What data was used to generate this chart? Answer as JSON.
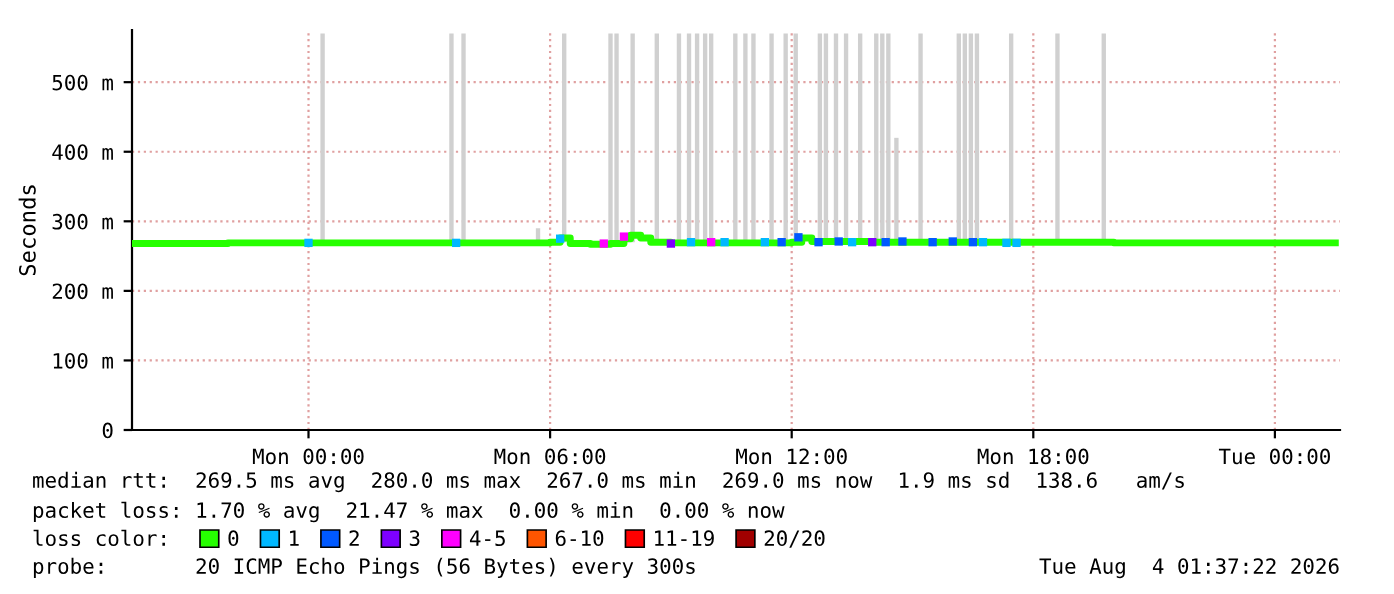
{
  "chart_data": {
    "type": "line",
    "ylabel": "Seconds",
    "legend_title": "loss color:",
    "xlim": [
      "2026-08-02T19:37",
      "2026-08-04T01:37"
    ],
    "xticks": [
      {
        "value": "2026-08-03T00:00",
        "label": "Mon 00:00"
      },
      {
        "value": "2026-08-03T06:00",
        "label": "Mon 06:00"
      },
      {
        "value": "2026-08-03T12:00",
        "label": "Mon 12:00"
      },
      {
        "value": "2026-08-03T18:00",
        "label": "Mon 18:00"
      },
      {
        "value": "2026-08-04T00:00",
        "label": "Tue 00:00"
      }
    ],
    "ylim": [
      0,
      575
    ],
    "yticks": [
      0,
      {
        "value": 100,
        "label": "100 m"
      },
      {
        "value": 200,
        "label": "200 m"
      },
      {
        "value": 300,
        "label": "300 m"
      },
      {
        "value": 400,
        "label": "400 m"
      },
      {
        "value": 500,
        "label": "500 m"
      }
    ],
    "grid": true,
    "legend": "bottom",
    "series": [
      {
        "type": "bar",
        "color": "#d0d0d0",
        "x": [
          "2026-08-03T00:21",
          "2026-08-03T03:33",
          "2026-08-03T03:51",
          "2026-08-03T05:42",
          "2026-08-03T06:21",
          "2026-08-03T07:30",
          "2026-08-03T07:39",
          "2026-08-03T08:03",
          "2026-08-03T08:39",
          "2026-08-03T09:12",
          "2026-08-03T09:27",
          "2026-08-03T09:39",
          "2026-08-03T09:51",
          "2026-08-03T10:00",
          "2026-08-03T10:36",
          "2026-08-03T10:51",
          "2026-08-03T11:03",
          "2026-08-03T11:30",
          "2026-08-03T11:51",
          "2026-08-03T12:06",
          "2026-08-03T12:42",
          "2026-08-03T12:51",
          "2026-08-03T13:06",
          "2026-08-03T13:21",
          "2026-08-03T13:42",
          "2026-08-03T14:06",
          "2026-08-03T14:15",
          "2026-08-03T14:24",
          "2026-08-03T14:36",
          "2026-08-03T15:12",
          "2026-08-03T16:09",
          "2026-08-03T16:18",
          "2026-08-03T16:27",
          "2026-08-03T16:36",
          "2026-08-03T17:27",
          "2026-08-03T18:36",
          "2026-08-03T19:45"
        ],
        "base": [
          270,
          270,
          270,
          270,
          270,
          270,
          270,
          270,
          270,
          270,
          270,
          270,
          270,
          270,
          270,
          270,
          270,
          270,
          270,
          270,
          270,
          270,
          270,
          270,
          270,
          270,
          270,
          270,
          270,
          270,
          270,
          270,
          270,
          270,
          270,
          270,
          270
        ],
        "values": [
          300,
          300,
          300,
          20,
          300,
          300,
          300,
          300,
          300,
          300,
          300,
          300,
          300,
          300,
          300,
          300,
          300,
          300,
          300,
          300,
          300,
          300,
          300,
          300,
          300,
          300,
          300,
          300,
          150,
          300,
          300,
          300,
          300,
          300,
          300,
          300,
          300
        ]
      },
      {
        "name": "0",
        "color": "#26ff00",
        "x": [
          "2026-08-02T19:37",
          "2026-08-02T22:00",
          "2026-08-03T00:00",
          "2026-08-03T03:00",
          "2026-08-03T05:30",
          "2026-08-03T06:00",
          "2026-08-03T06:15",
          "2026-08-03T06:30",
          "2026-08-03T07:00",
          "2026-08-03T07:30",
          "2026-08-03T07:50",
          "2026-08-03T08:00",
          "2026-08-03T08:15",
          "2026-08-03T08:30",
          "2026-08-03T09:00",
          "2026-08-03T12:00",
          "2026-08-03T12:15",
          "2026-08-03T12:30",
          "2026-08-03T14:00",
          "2026-08-03T18:00",
          "2026-08-03T20:00",
          "2026-08-04T01:30"
        ],
        "values": [
          268,
          269,
          269,
          269,
          269,
          270,
          276,
          268,
          267,
          268,
          275,
          280,
          276,
          270,
          269,
          270,
          276,
          271,
          270,
          270,
          269,
          269
        ]
      },
      {
        "name": "1",
        "type": "scatter",
        "color": "#00b8ff",
        "x": [
          "2026-08-03T00:00",
          "2026-08-03T03:40",
          "2026-08-03T06:15",
          "2026-08-03T09:30",
          "2026-08-03T10:20",
          "2026-08-03T11:20",
          "2026-08-03T13:30",
          "2026-08-03T16:45",
          "2026-08-03T17:20",
          "2026-08-03T17:35"
        ],
        "values": [
          269,
          269,
          275,
          270,
          270,
          270,
          270,
          270,
          269,
          269
        ]
      },
      {
        "name": "2",
        "type": "scatter",
        "color": "#0059ff",
        "x": [
          "2026-08-03T11:45",
          "2026-08-03T12:10",
          "2026-08-03T12:40",
          "2026-08-03T13:10",
          "2026-08-03T14:20",
          "2026-08-03T14:45",
          "2026-08-03T15:30",
          "2026-08-03T16:00",
          "2026-08-03T16:30"
        ],
        "values": [
          270,
          277,
          270,
          271,
          270,
          271,
          270,
          271,
          270
        ]
      },
      {
        "name": "3",
        "type": "scatter",
        "color": "#7e00ff",
        "x": [
          "2026-08-03T09:00",
          "2026-08-03T14:00"
        ],
        "values": [
          268,
          270
        ]
      },
      {
        "name": "4-5",
        "type": "scatter",
        "color": "#ff00ff",
        "x": [
          "2026-08-03T07:20",
          "2026-08-03T07:50",
          "2026-08-03T10:00"
        ],
        "values": [
          268,
          278,
          270
        ]
      },
      {
        "name": "6-10",
        "type": "scatter",
        "color": "#ff5500"
      },
      {
        "name": "11-19",
        "type": "scatter",
        "color": "#ff0000"
      },
      {
        "name": "20/20",
        "type": "scatter",
        "color": "#a10000"
      }
    ],
    "annotations": [
      "median rtt:  269.5 ms avg  280.0 ms max  267.0 ms min  269.0 ms now  1.9 ms sd  138.6   am/s",
      "packet loss: 1.70 % avg  21.47 % max  0.00 % min  0.00 % now",
      "probe:       20 ICMP Echo Pings (56 Bytes) every 300s",
      "Tue Aug  4 01:37:22 2026"
    ]
  }
}
